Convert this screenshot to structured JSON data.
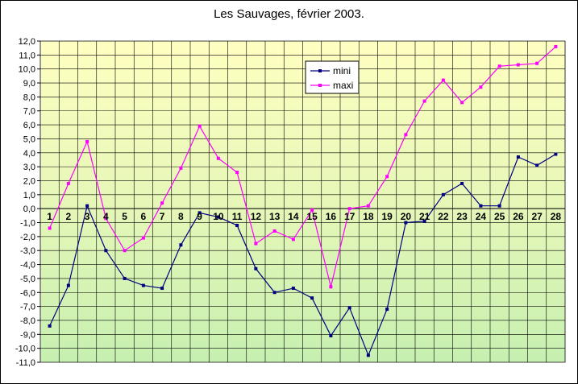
{
  "chart_data": {
    "type": "line",
    "title": "Les Sauvages, février 2003.",
    "xlabel": "",
    "ylabel": "",
    "x": [
      1,
      2,
      3,
      4,
      5,
      6,
      7,
      8,
      9,
      10,
      11,
      12,
      13,
      14,
      15,
      16,
      17,
      18,
      19,
      20,
      21,
      22,
      23,
      24,
      25,
      26,
      27,
      28
    ],
    "ylim": [
      -11,
      12
    ],
    "ystep": 1,
    "grid": true,
    "legend": "top-center",
    "series": [
      {
        "name": "mini",
        "color": "#000080",
        "marker": "square",
        "values": [
          -8.4,
          -5.5,
          0.2,
          -3.0,
          -5.0,
          -5.5,
          -5.7,
          -2.6,
          -0.3,
          -0.6,
          -1.2,
          -4.3,
          -6.0,
          -5.7,
          -6.4,
          -9.1,
          -7.1,
          -10.5,
          -7.2,
          -1.0,
          -0.9,
          1.0,
          1.8,
          0.2,
          0.2,
          3.7,
          3.1,
          3.9
        ]
      },
      {
        "name": "maxi",
        "color": "#ff00ff",
        "marker": "square",
        "values": [
          -1.4,
          1.8,
          4.8,
          -0.7,
          -3.0,
          -2.1,
          0.4,
          2.9,
          5.9,
          3.6,
          2.6,
          -2.5,
          -1.6,
          -2.2,
          -0.1,
          -5.6,
          0.0,
          0.2,
          2.3,
          5.3,
          7.7,
          9.2,
          7.6,
          8.7,
          10.2,
          10.3,
          10.4,
          11.6
        ]
      }
    ]
  }
}
